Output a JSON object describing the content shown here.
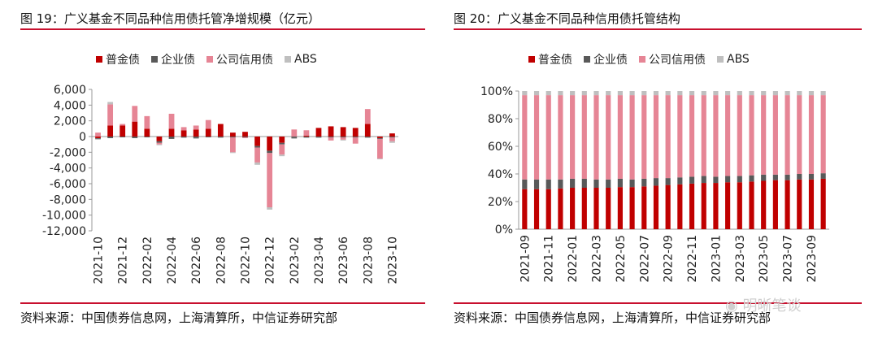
{
  "charts": [
    {
      "title": "图 19：广义基金不同品种信用债托管净增规模（亿元）",
      "source": "资料来源：中国债券信息网，上海清算所，中信证券研究部",
      "legend": [
        "普金债",
        "企业债",
        "公司信用债",
        "ABS"
      ]
    },
    {
      "title": "图 20：广义基金不同品种信用债托管结构",
      "source": "资料来源：中国债券信息网，上海清算所，中信证券研究部",
      "legend": [
        "普金债",
        "企业债",
        "公司信用债",
        "ABS"
      ]
    }
  ],
  "colors": {
    "fin": "#c00000",
    "ent": "#595959",
    "corp": "#e68595",
    "abs": "#bfbfbf",
    "rule": "#c8102e"
  },
  "watermark": {
    "text": "明晰笔谈",
    "icon": "wechat-icon"
  },
  "chart_data": [
    {
      "type": "bar",
      "stacked": true,
      "title": "图 19：广义基金不同品种信用债托管净增规模（亿元）",
      "categories": [
        "2021-10",
        "2021-11",
        "2021-12",
        "2022-01",
        "2022-02",
        "2022-03",
        "2022-04",
        "2022-05",
        "2022-06",
        "2022-07",
        "2022-08",
        "2022-09",
        "2022-10",
        "2022-11",
        "2022-12",
        "2023-01",
        "2023-02",
        "2023-03",
        "2023-04",
        "2023-05",
        "2023-06",
        "2023-07",
        "2023-08",
        "2023-09",
        "2023-10"
      ],
      "x_tick_labels": [
        "2021-10",
        "2021-12",
        "2022-02",
        "2022-04",
        "2022-06",
        "2022-08",
        "2022-10",
        "2022-12",
        "2023-02",
        "2023-04",
        "2023-06",
        "2023-08",
        "2023-10"
      ],
      "series": [
        {
          "name": "普金债",
          "values": [
            -200,
            1400,
            1400,
            1900,
            1000,
            -600,
            1000,
            800,
            900,
            1000,
            1600,
            500,
            600,
            -1200,
            -1800,
            -800,
            0,
            100,
            1100,
            1300,
            1200,
            1100,
            1600,
            -200,
            400
          ]
        },
        {
          "name": "企业债",
          "values": [
            -100,
            -200,
            -100,
            -200,
            -100,
            -200,
            -300,
            -100,
            -200,
            -100,
            -100,
            -100,
            -100,
            -200,
            -300,
            -200,
            -200,
            -100,
            -100,
            -100,
            -100,
            -100,
            -100,
            -100,
            -100
          ]
        },
        {
          "name": "公司信用债",
          "values": [
            500,
            2700,
            200,
            2000,
            1600,
            -200,
            1900,
            400,
            500,
            1100,
            0,
            -1900,
            -100,
            -1900,
            -6900,
            -1300,
            900,
            700,
            0,
            -400,
            -300,
            -800,
            1900,
            -2500,
            -500
          ]
        },
        {
          "name": "ABS",
          "values": [
            -100,
            300,
            0,
            0,
            0,
            -100,
            0,
            -100,
            -100,
            0,
            -100,
            -100,
            0,
            -300,
            -300,
            -200,
            -100,
            -100,
            -100,
            0,
            -100,
            0,
            -100,
            -100,
            -200
          ]
        }
      ],
      "ylim": [
        -12000,
        6000
      ],
      "yticks": [
        -12000,
        -10000,
        -8000,
        -6000,
        -4000,
        -2000,
        0,
        2000,
        4000,
        6000
      ],
      "ytick_labels": [
        "-12,000",
        "-10,000",
        "-8,000",
        "-6,000",
        "-4,000",
        "-2,000",
        "0",
        "2,000",
        "4,000",
        "6,000"
      ],
      "legend_position": "top"
    },
    {
      "type": "bar",
      "stacked": true,
      "percent": true,
      "title": "图 20：广义基金不同品种信用债托管结构",
      "categories": [
        "2021-09",
        "2021-10",
        "2021-11",
        "2021-12",
        "2022-01",
        "2022-02",
        "2022-03",
        "2022-04",
        "2022-05",
        "2022-06",
        "2022-07",
        "2022-08",
        "2022-09",
        "2022-10",
        "2022-11",
        "2022-12",
        "2023-01",
        "2023-02",
        "2023-03",
        "2023-04",
        "2023-05",
        "2023-06",
        "2023-07",
        "2023-08",
        "2023-09",
        "2023-10"
      ],
      "x_tick_labels": [
        "2021-09",
        "2021-11",
        "2022-01",
        "2022-03",
        "2022-05",
        "2022-07",
        "2022-09",
        "2022-11",
        "2023-01",
        "2023-03",
        "2023-05",
        "2023-07",
        "2023-09"
      ],
      "series": [
        {
          "name": "普金债",
          "values": [
            29,
            29,
            29,
            29.5,
            30,
            30,
            30,
            30,
            30.5,
            30.5,
            31,
            31.5,
            32,
            32.5,
            33,
            33.5,
            33.5,
            34,
            34,
            34.5,
            35,
            35.5,
            35.5,
            36,
            36,
            36.5
          ]
        },
        {
          "name": "企业债",
          "values": [
            7,
            7,
            7,
            6.5,
            6.5,
            6.5,
            6,
            6,
            6,
            5.5,
            5.5,
            5.5,
            5,
            5,
            5,
            5,
            4.5,
            4.5,
            4.5,
            4.5,
            4.5,
            4,
            4,
            4,
            4,
            4
          ]
        },
        {
          "name": "公司信用债",
          "values": [
            61,
            61,
            61,
            61,
            60.5,
            60.5,
            61,
            61,
            60.5,
            61,
            60.5,
            60,
            60,
            59.5,
            59,
            58.5,
            59,
            58.5,
            58.5,
            58,
            57.5,
            57.5,
            57.5,
            57,
            57,
            56.5
          ]
        },
        {
          "name": "ABS",
          "values": [
            3,
            3,
            3,
            3,
            3,
            3,
            3,
            3,
            3,
            3,
            3,
            3,
            3,
            3,
            3,
            3,
            3,
            3,
            3,
            3,
            3,
            3,
            3,
            3,
            3,
            3
          ]
        }
      ],
      "ylim": [
        0,
        100
      ],
      "yticks": [
        0,
        20,
        40,
        60,
        80,
        100
      ],
      "ytick_labels": [
        "0%",
        "20%",
        "40%",
        "60%",
        "80%",
        "100%"
      ],
      "legend_position": "top"
    }
  ]
}
